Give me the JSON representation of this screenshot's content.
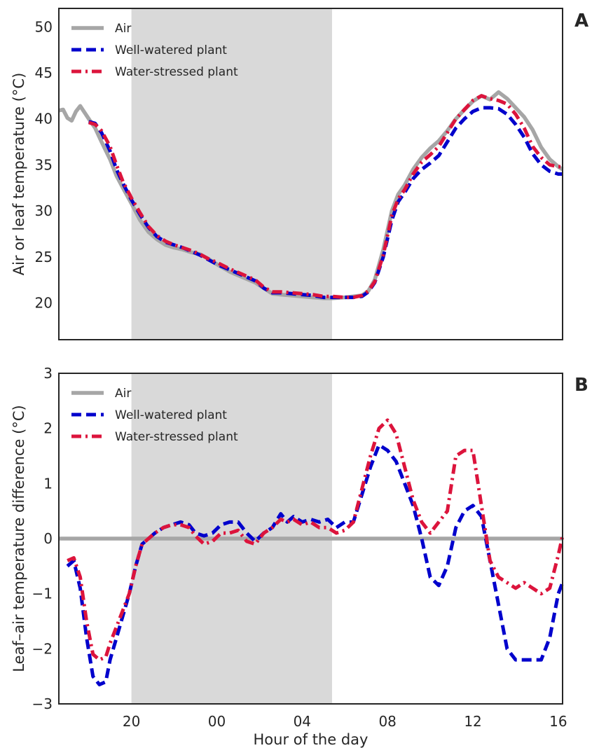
{
  "chart_data": [
    {
      "panel": "A",
      "type": "line",
      "ylabel": "Air or leaf temperature (°C)",
      "xlabel": "",
      "xlim": [
        16.6,
        40.2
      ],
      "ylim": [
        16,
        52
      ],
      "yticks": [
        20,
        25,
        30,
        35,
        40,
        45,
        50
      ],
      "xticks": [
        20,
        24,
        28,
        32,
        36,
        40
      ],
      "xticklabels": [
        "20",
        "00",
        "04",
        "08",
        "12",
        "16"
      ],
      "shaded_interval": [
        20.0,
        29.4
      ],
      "grid": false,
      "legend_position": "top-left",
      "series": [
        {
          "name": "Air",
          "color": "#a6a6a6",
          "style": "solid",
          "x": [
            16.6,
            16.8,
            17.0,
            17.2,
            17.4,
            17.6,
            17.8,
            18.0,
            18.3,
            18.6,
            19.0,
            19.3,
            19.6,
            20.0,
            20.4,
            20.8,
            21.2,
            21.6,
            22.0,
            22.4,
            22.8,
            23.2,
            23.6,
            24.0,
            24.6,
            25.2,
            25.8,
            26.2,
            26.6,
            27.0,
            27.5,
            28.0,
            28.5,
            29.0,
            29.4,
            30.0,
            30.4,
            30.8,
            31.1,
            31.4,
            31.8,
            32.2,
            32.5,
            32.8,
            33.2,
            33.6,
            34.0,
            34.4,
            34.8,
            35.2,
            35.6,
            36.0,
            36.4,
            36.8,
            37.2,
            37.6,
            38.0,
            38.4,
            38.8,
            39.2,
            39.6,
            40.0,
            40.2
          ],
          "y": [
            40.9,
            41.0,
            40.1,
            39.8,
            40.8,
            41.4,
            40.7,
            40.0,
            39.0,
            37.5,
            35.6,
            33.8,
            32.5,
            30.8,
            29.0,
            27.7,
            26.9,
            26.3,
            26.0,
            25.8,
            25.5,
            25.3,
            24.8,
            24.2,
            23.4,
            22.8,
            22.2,
            21.6,
            21.0,
            20.9,
            20.8,
            20.7,
            20.6,
            20.5,
            20.5,
            20.6,
            20.7,
            20.8,
            21.3,
            22.5,
            25.8,
            30.0,
            31.8,
            32.8,
            34.5,
            35.8,
            36.8,
            37.6,
            38.7,
            40.0,
            41.0,
            41.9,
            42.5,
            42.1,
            42.9,
            42.2,
            41.2,
            40.2,
            38.8,
            36.9,
            35.6,
            34.8,
            34.5
          ]
        },
        {
          "name": "Well-watered plant",
          "color": "#0000cc",
          "style": "dashed",
          "x": [
            18.0,
            18.3,
            18.6,
            19.0,
            19.3,
            19.6,
            20.0,
            20.4,
            20.8,
            21.2,
            21.6,
            22.0,
            22.4,
            22.8,
            23.2,
            23.6,
            24.0,
            24.6,
            25.2,
            25.8,
            26.2,
            26.6,
            27.0,
            27.5,
            28.0,
            28.5,
            29.0,
            29.4,
            30.0,
            30.4,
            30.8,
            31.1,
            31.4,
            31.8,
            32.2,
            32.5,
            32.8,
            33.2,
            33.6,
            34.0,
            34.4,
            34.8,
            35.2,
            35.6,
            36.0,
            36.4,
            36.8,
            37.2,
            37.6,
            38.0,
            38.4,
            38.8,
            39.2,
            39.6,
            40.0,
            40.2
          ],
          "y": [
            39.7,
            39.5,
            38.5,
            36.5,
            34.5,
            33.0,
            31.2,
            29.6,
            28.2,
            27.2,
            26.6,
            26.3,
            26.0,
            25.6,
            25.2,
            24.7,
            24.2,
            23.6,
            23.0,
            22.4,
            21.6,
            21.1,
            21.1,
            21.0,
            20.9,
            20.8,
            20.6,
            20.6,
            20.6,
            20.6,
            20.7,
            21.2,
            22.2,
            25.0,
            29.0,
            31.0,
            32.0,
            33.5,
            34.5,
            35.2,
            36.0,
            37.5,
            39.0,
            40.0,
            40.8,
            41.2,
            41.2,
            41.1,
            40.5,
            39.4,
            38.0,
            36.2,
            35.0,
            34.3,
            34.0,
            34.0
          ]
        },
        {
          "name": "Water-stressed plant",
          "color": "#dc143c",
          "style": "dashdot",
          "x": [
            18.0,
            18.3,
            18.6,
            19.0,
            19.3,
            19.6,
            20.0,
            20.4,
            20.8,
            21.2,
            21.6,
            22.0,
            22.4,
            22.8,
            23.2,
            23.6,
            24.0,
            24.6,
            25.2,
            25.8,
            26.2,
            26.6,
            27.0,
            27.5,
            28.0,
            28.5,
            29.0,
            29.4,
            30.0,
            30.4,
            30.8,
            31.1,
            31.4,
            31.8,
            32.2,
            32.5,
            32.8,
            33.2,
            33.6,
            34.0,
            34.4,
            34.8,
            35.2,
            35.6,
            36.0,
            36.4,
            36.8,
            37.2,
            37.6,
            38.0,
            38.4,
            38.8,
            39.2,
            39.6,
            40.0,
            40.2
          ],
          "y": [
            39.6,
            39.4,
            38.7,
            37.0,
            35.0,
            33.2,
            31.4,
            29.8,
            28.3,
            27.3,
            26.7,
            26.3,
            26.0,
            25.7,
            25.3,
            24.8,
            24.4,
            23.7,
            23.1,
            22.5,
            21.7,
            21.2,
            21.2,
            21.1,
            21.0,
            20.9,
            20.7,
            20.7,
            20.6,
            20.6,
            20.8,
            21.3,
            22.3,
            25.2,
            29.5,
            31.3,
            32.3,
            34.0,
            35.3,
            36.1,
            37.0,
            38.5,
            40.0,
            41.0,
            42.0,
            42.5,
            42.2,
            42.0,
            41.6,
            40.5,
            39.0,
            37.0,
            35.8,
            35.0,
            34.8,
            34.8
          ]
        }
      ]
    },
    {
      "panel": "B",
      "type": "line",
      "ylabel": "Leaf–air temperature difference (°C)",
      "xlabel": "Hour of the day",
      "xlim": [
        16.6,
        40.2
      ],
      "ylim": [
        -3,
        3
      ],
      "yticks": [
        -3,
        -2,
        -1,
        0,
        1,
        2,
        3
      ],
      "yticklabels": [
        "−3",
        "−2",
        "−1",
        "0",
        "1",
        "2",
        "3"
      ],
      "xticks": [
        20,
        24,
        28,
        32,
        36,
        40
      ],
      "xticklabels": [
        "20",
        "00",
        "04",
        "08",
        "12",
        "16"
      ],
      "shaded_interval": [
        20.0,
        29.4
      ],
      "grid": false,
      "legend_position": "top-left",
      "series": [
        {
          "name": "Air",
          "color": "#a6a6a6",
          "style": "solid",
          "x": [
            16.6,
            40.2
          ],
          "y": [
            0,
            0
          ]
        },
        {
          "name": "Well-watered plant",
          "color": "#0000cc",
          "style": "dashed",
          "x": [
            17.0,
            17.3,
            17.6,
            17.9,
            18.2,
            18.5,
            18.8,
            19.0,
            19.3,
            19.6,
            19.9,
            20.2,
            20.5,
            20.8,
            21.1,
            21.5,
            21.9,
            22.3,
            22.7,
            23.0,
            23.4,
            23.8,
            24.2,
            24.6,
            25.0,
            25.4,
            25.8,
            26.2,
            26.6,
            27.0,
            27.3,
            27.6,
            28.0,
            28.4,
            28.8,
            29.2,
            29.6,
            30.0,
            30.4,
            30.8,
            31.2,
            31.6,
            32.0,
            32.4,
            32.8,
            33.2,
            33.6,
            34.0,
            34.4,
            34.8,
            35.2,
            35.6,
            36.0,
            36.4,
            36.8,
            37.2,
            37.6,
            38.0,
            38.4,
            38.8,
            39.2,
            39.6,
            40.0,
            40.2
          ],
          "y": [
            -0.5,
            -0.4,
            -0.9,
            -1.8,
            -2.5,
            -2.65,
            -2.6,
            -2.2,
            -1.8,
            -1.4,
            -1.0,
            -0.5,
            -0.1,
            0.0,
            0.1,
            0.2,
            0.25,
            0.3,
            0.25,
            0.1,
            0.05,
            0.1,
            0.25,
            0.3,
            0.3,
            0.1,
            -0.05,
            0.1,
            0.2,
            0.45,
            0.3,
            0.4,
            0.3,
            0.35,
            0.3,
            0.35,
            0.2,
            0.3,
            0.3,
            0.8,
            1.3,
            1.7,
            1.6,
            1.4,
            1.0,
            0.6,
            0.0,
            -0.7,
            -0.85,
            -0.5,
            0.2,
            0.5,
            0.6,
            0.4,
            -0.4,
            -1.2,
            -2.0,
            -2.2,
            -2.2,
            -2.2,
            -2.2,
            -1.8,
            -1.0,
            -0.8
          ]
        },
        {
          "name": "Water-stressed plant",
          "color": "#dc143c",
          "style": "dashdot",
          "x": [
            17.0,
            17.3,
            17.6,
            17.9,
            18.2,
            18.5,
            18.8,
            19.0,
            19.3,
            19.6,
            19.9,
            20.2,
            20.5,
            20.8,
            21.1,
            21.5,
            21.9,
            22.3,
            22.7,
            23.0,
            23.4,
            23.8,
            24.2,
            24.6,
            25.0,
            25.4,
            25.8,
            26.2,
            26.6,
            27.0,
            27.3,
            27.6,
            28.0,
            28.4,
            28.8,
            29.2,
            29.6,
            30.0,
            30.4,
            30.8,
            31.2,
            31.6,
            32.0,
            32.4,
            32.8,
            33.2,
            33.6,
            34.0,
            34.4,
            34.8,
            35.2,
            35.6,
            36.0,
            36.4,
            36.8,
            37.2,
            37.6,
            38.0,
            38.4,
            38.8,
            39.2,
            39.6,
            40.0,
            40.2
          ],
          "y": [
            -0.4,
            -0.35,
            -0.7,
            -1.5,
            -2.1,
            -2.2,
            -2.15,
            -1.9,
            -1.6,
            -1.3,
            -1.0,
            -0.5,
            -0.1,
            0.0,
            0.1,
            0.2,
            0.25,
            0.25,
            0.2,
            0.05,
            -0.1,
            -0.05,
            0.1,
            0.1,
            0.15,
            -0.05,
            -0.1,
            0.1,
            0.2,
            0.35,
            0.3,
            0.35,
            0.25,
            0.3,
            0.2,
            0.2,
            0.1,
            0.15,
            0.3,
            0.9,
            1.5,
            2.0,
            2.15,
            1.9,
            1.3,
            0.7,
            0.3,
            0.1,
            0.3,
            0.5,
            1.5,
            1.6,
            1.6,
            0.6,
            -0.4,
            -0.7,
            -0.8,
            -0.9,
            -0.8,
            -0.9,
            -1.0,
            -0.9,
            -0.3,
            0.05
          ]
        }
      ]
    }
  ],
  "legend": {
    "labels": [
      "Air",
      "Well-watered plant",
      "Water-stressed plant"
    ]
  },
  "panel_letters": [
    "A",
    "B"
  ]
}
